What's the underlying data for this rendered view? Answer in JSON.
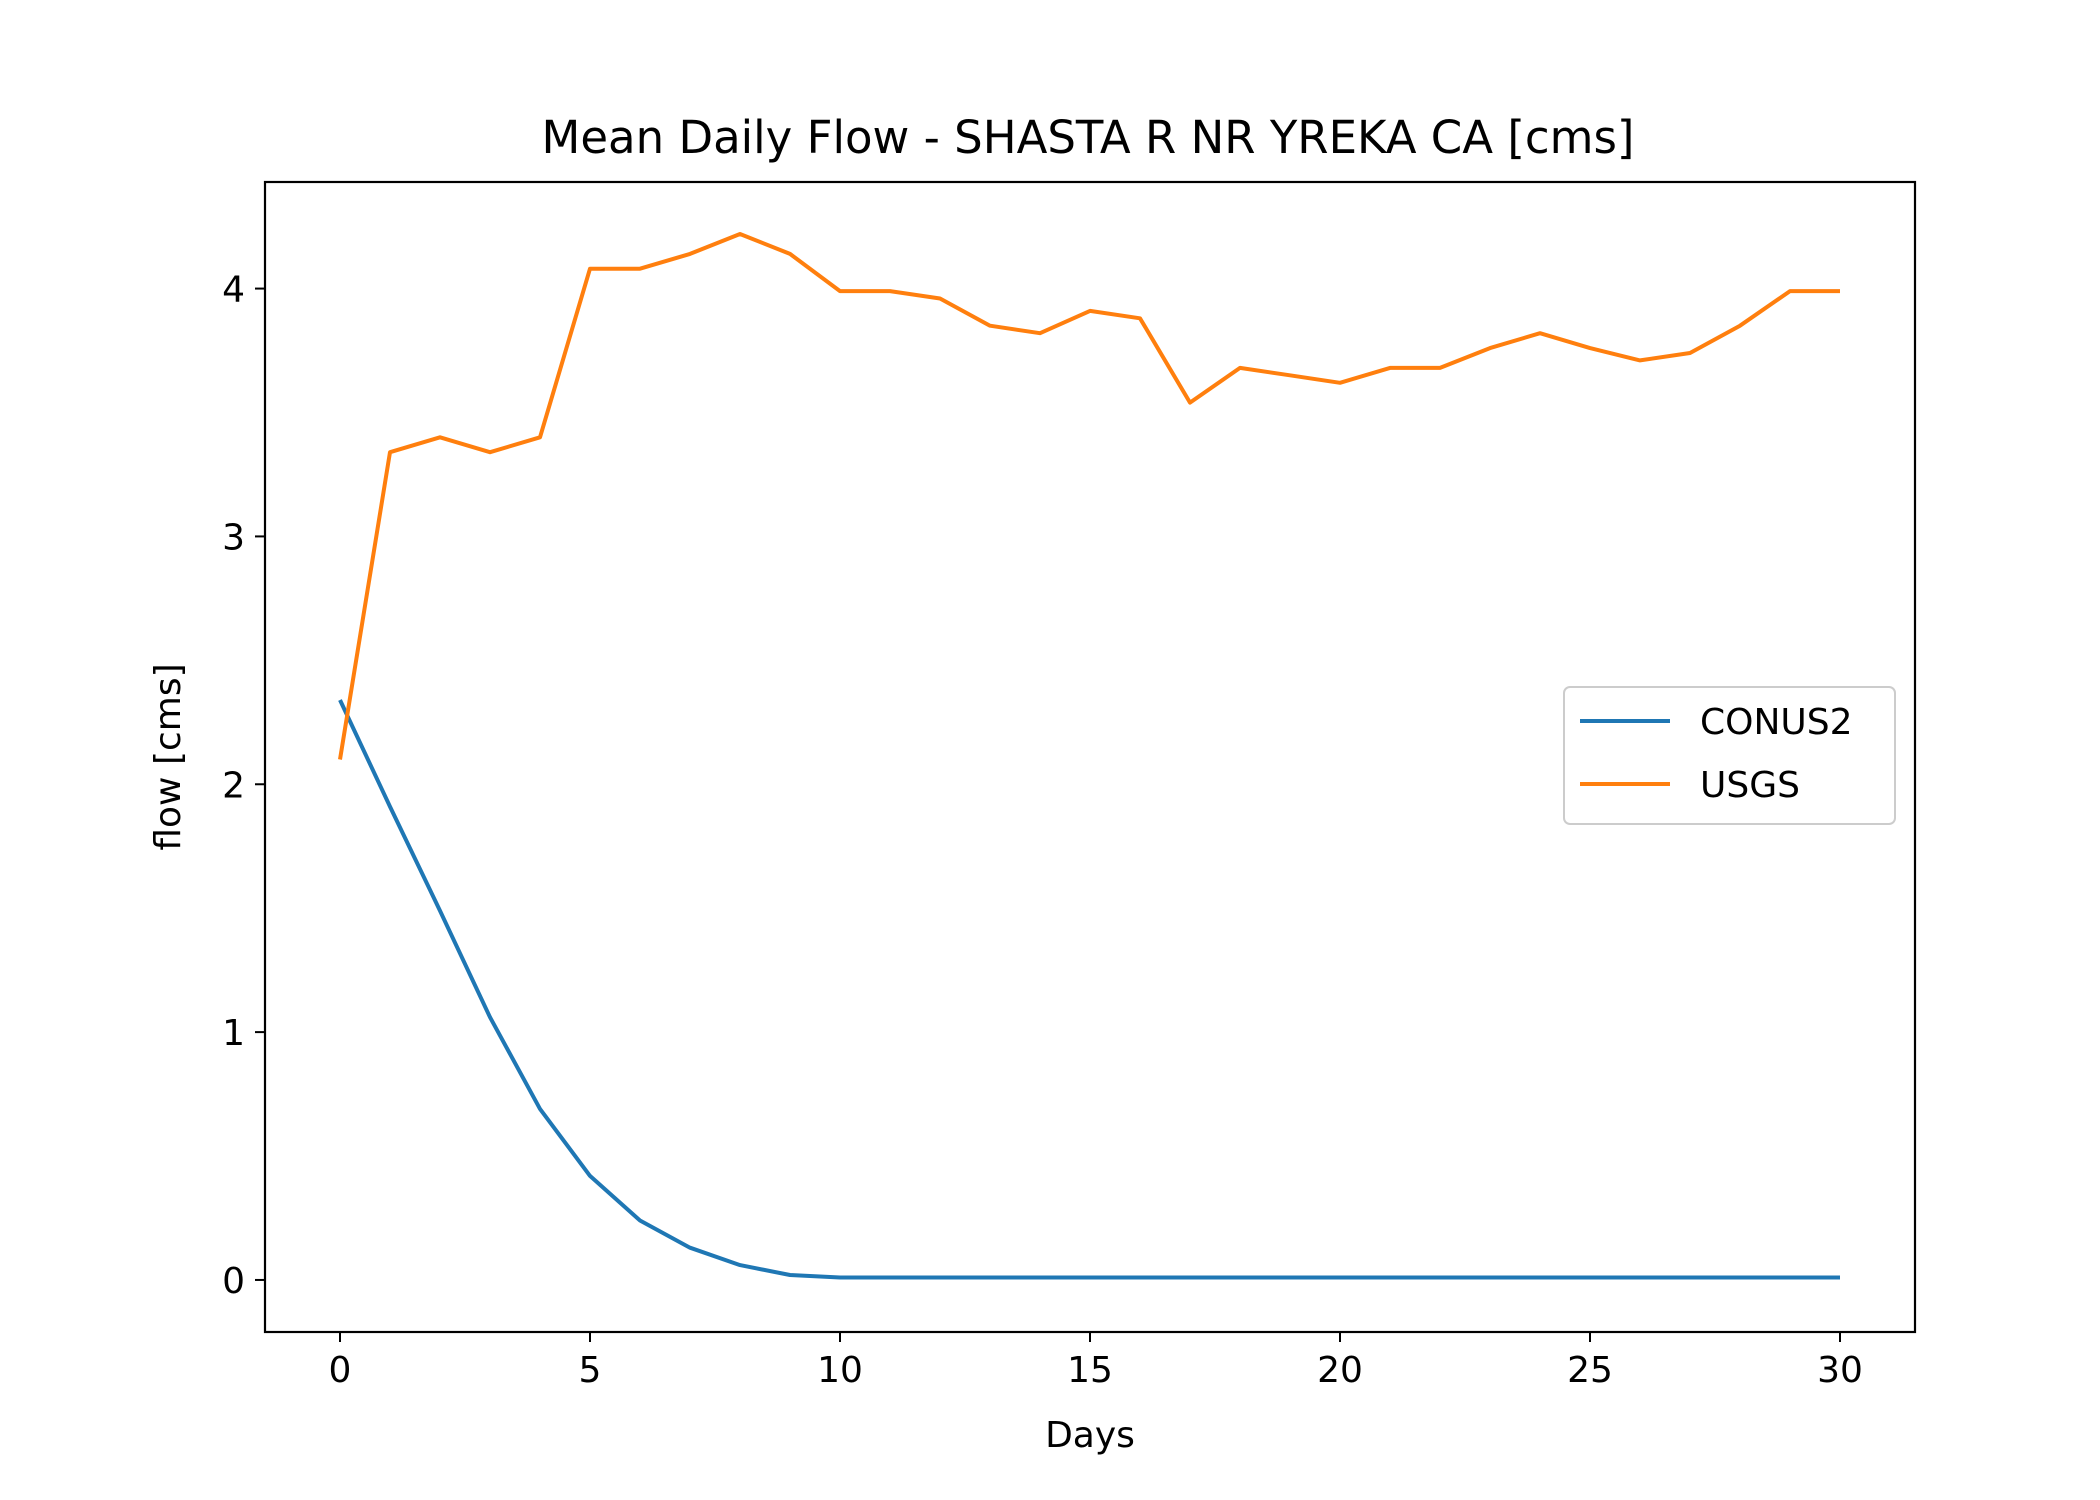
{
  "chart_data": {
    "type": "line",
    "title": "Mean Daily Flow - SHASTA R NR YREKA CA [cms]",
    "xlabel": "Days",
    "ylabel": "flow [cms]",
    "xlim": [
      -1.5,
      31.5
    ],
    "ylim": [
      -0.21,
      4.43
    ],
    "xticks": [
      0,
      5,
      10,
      15,
      20,
      25,
      30
    ],
    "yticks": [
      0,
      1,
      2,
      3,
      4
    ],
    "grid": false,
    "legend_position": "center-right",
    "x": [
      0,
      1,
      2,
      3,
      4,
      5,
      6,
      7,
      8,
      9,
      10,
      11,
      12,
      13,
      14,
      15,
      16,
      17,
      18,
      19,
      20,
      21,
      22,
      23,
      24,
      25,
      26,
      27,
      28,
      29,
      30
    ],
    "series": [
      {
        "name": "CONUS2",
        "color": "#1f77b4",
        "values": [
          2.34,
          1.91,
          1.49,
          1.06,
          0.69,
          0.42,
          0.24,
          0.13,
          0.06,
          0.02,
          0.01,
          0.01,
          0.01,
          0.01,
          0.01,
          0.01,
          0.01,
          0.01,
          0.01,
          0.01,
          0.01,
          0.01,
          0.01,
          0.01,
          0.01,
          0.01,
          0.01,
          0.01,
          0.01,
          0.01,
          0.01
        ]
      },
      {
        "name": "USGS",
        "color": "#ff7f0e",
        "values": [
          2.1,
          3.34,
          3.4,
          3.34,
          3.4,
          4.08,
          4.08,
          4.14,
          4.22,
          4.14,
          3.99,
          3.99,
          3.96,
          3.85,
          3.82,
          3.91,
          3.88,
          3.54,
          3.68,
          3.65,
          3.62,
          3.68,
          3.68,
          3.76,
          3.82,
          3.76,
          3.71,
          3.74,
          3.85,
          3.99,
          3.99
        ]
      }
    ]
  }
}
